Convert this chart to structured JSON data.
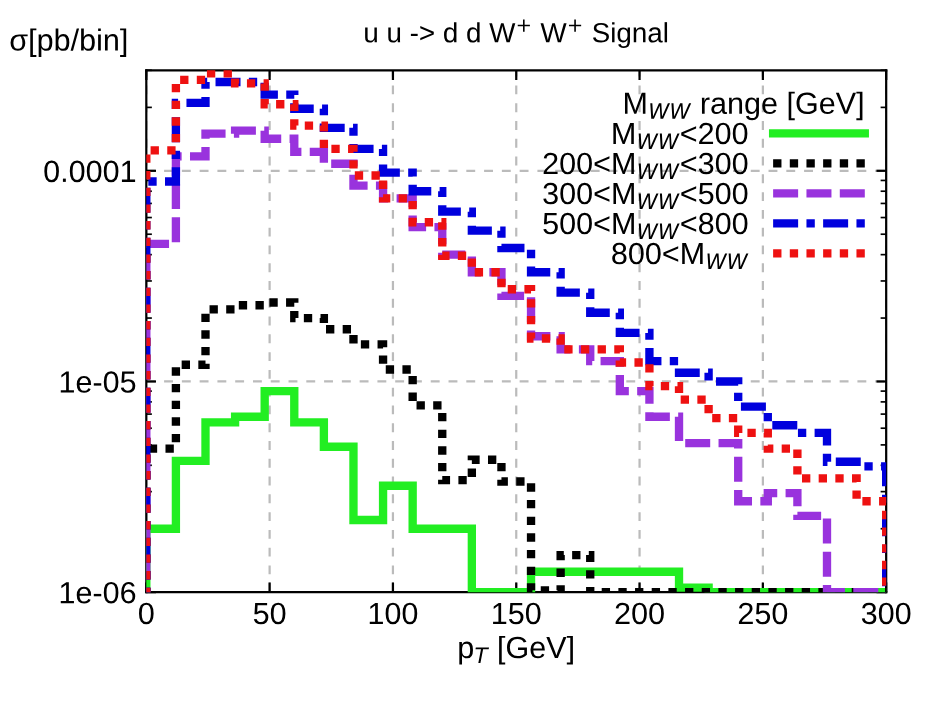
{
  "chart_data": {
    "type": "histogram",
    "title": "u u -> d d W$^{+}$ W$^{+}$ Signal",
    "xlabel": "p$_{T}$ [GeV]",
    "ylabel": "σ[pb/bin]",
    "legend_title": "M$_{WW}$ range [GeV]",
    "bins": [
      0,
      12,
      24,
      36,
      48,
      60,
      72,
      84,
      96,
      108,
      120,
      132,
      144,
      156,
      168,
      180,
      192,
      204,
      216,
      228,
      240,
      252,
      264,
      276,
      288,
      300
    ],
    "series": [
      {
        "name": "M$_{WW}$<200",
        "color": "#22ee22",
        "line_style": "solid",
        "values": [
          2e-06,
          4.2e-06,
          6.4e-06,
          6.8e-06,
          9e-06,
          6.4e-06,
          4.9e-06,
          2.2e-06,
          3.2e-06,
          2e-06,
          2e-06,
          null,
          null,
          1.25e-06,
          1.25e-06,
          1.25e-06,
          1.25e-06,
          1.25e-06,
          1.05e-06,
          null,
          null,
          null,
          null,
          null,
          null
        ]
      },
      {
        "name": "200<M$_{WW}$<300",
        "color": "#000000",
        "line_style": "dotted",
        "values": [
          4.8e-06,
          1.2e-05,
          2.2e-05,
          2.3e-05,
          2.37e-05,
          2e-05,
          1.77e-05,
          1.5e-05,
          1.14e-05,
          7.7e-06,
          3.4e-06,
          4.25e-06,
          3.35e-06,
          1.02e-06,
          1.5e-06,
          null,
          null,
          null,
          null,
          null,
          null,
          null,
          null,
          null,
          null
        ]
      },
      {
        "name": "300<M$_{WW}$<500",
        "color": "#9933dd",
        "line_style": "dashed",
        "values": [
          4.5e-05,
          0.000117,
          0.00015,
          0.000155,
          0.000142,
          0.000123,
          0.000108,
          8.5e-05,
          7.4e-05,
          5.4e-05,
          4e-05,
          3.3e-05,
          2.55e-05,
          1.64e-05,
          1.42e-05,
          1.25e-05,
          9e-06,
          6.8e-06,
          5.1e-06,
          5.1e-06,
          2.7e-06,
          2.95e-06,
          2.3e-06,
          null,
          null
        ]
      },
      {
        "name": "500<M$_{WW}$<800",
        "color": "#0000dd",
        "line_style": "dashdot",
        "values": [
          8.9e-05,
          0.00021,
          0.000264,
          0.000264,
          0.00023,
          0.000197,
          0.00016,
          0.000127,
          9.8e-05,
          8e-05,
          6.4e-05,
          5.2e-05,
          4.3e-05,
          3.3e-05,
          2.64e-05,
          2.12e-05,
          1.7e-05,
          1.25e-05,
          1.1e-05,
          1e-05,
          7.6e-06,
          6.2e-06,
          5.7e-06,
          4.16e-06,
          3.95e-06
        ]
      },
      {
        "name": "800<M$_{WW}$",
        "color": "#ee1111",
        "line_style": "dotted",
        "values": [
          0.000125,
          0.00027,
          0.00029,
          0.00026,
          0.000207,
          0.000164,
          0.000127,
          9.5e-05,
          7.4e-05,
          5.7e-05,
          3.95e-05,
          3.3e-05,
          2.74e-05,
          1.6e-05,
          1.42e-05,
          1.42e-05,
          1.23e-05,
          9.5e-06,
          8.2e-06,
          6.7e-06,
          5.7e-06,
          4.8e-06,
          3.47e-06,
          3.47e-06,
          2.7e-06
        ]
      }
    ],
    "xlim": [
      0,
      300
    ],
    "xticks": [
      0,
      50,
      100,
      150,
      200,
      250,
      300
    ],
    "log": true,
    "ylim": [
      1e-06,
      0.0003
    ],
    "yticks": [
      {
        "value": 1e-06,
        "label": "1e-06"
      },
      {
        "value": 1e-05,
        "label": "1e-05"
      },
      {
        "value": 0.0001,
        "label": "0.0001"
      }
    ],
    "grid": true,
    "legend": "top right"
  }
}
